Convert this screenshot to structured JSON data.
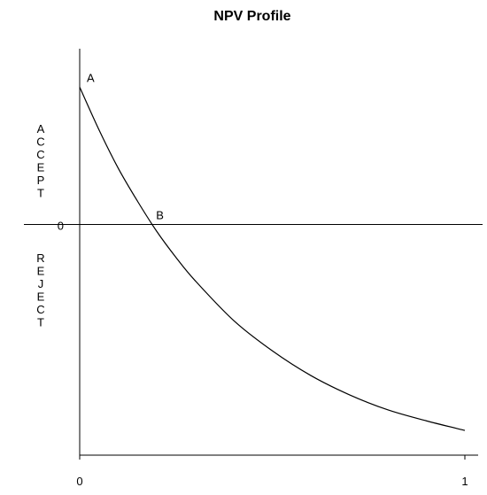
{
  "chart_data": {
    "type": "line",
    "title": "NPV Profile",
    "x": [
      0,
      0.05,
      0.1,
      0.15,
      0.2,
      0.25,
      0.3,
      0.4,
      0.5,
      0.6,
      0.7,
      0.8,
      0.9,
      1.0
    ],
    "series": [
      {
        "color": "#000000",
        "values": [
          1.0,
          0.69,
          0.41,
          0.17,
          -0.05,
          -0.24,
          -0.41,
          -0.7,
          -0.92,
          -1.1,
          -1.24,
          -1.35,
          -1.43,
          -1.5
        ]
      }
    ],
    "xlim": [
      0,
      1
    ],
    "xticks": [
      0,
      1
    ],
    "ylim": [
      -1.68,
      1.28
    ],
    "yticks": [
      0
    ],
    "ylabel_top": "ACCEPT",
    "ylabel_bottom": "REJECT",
    "annotations": [
      {
        "text": "A",
        "x": 0,
        "y": 1.0
      },
      {
        "text": "B",
        "x": 0.18,
        "y": 0
      }
    ]
  }
}
